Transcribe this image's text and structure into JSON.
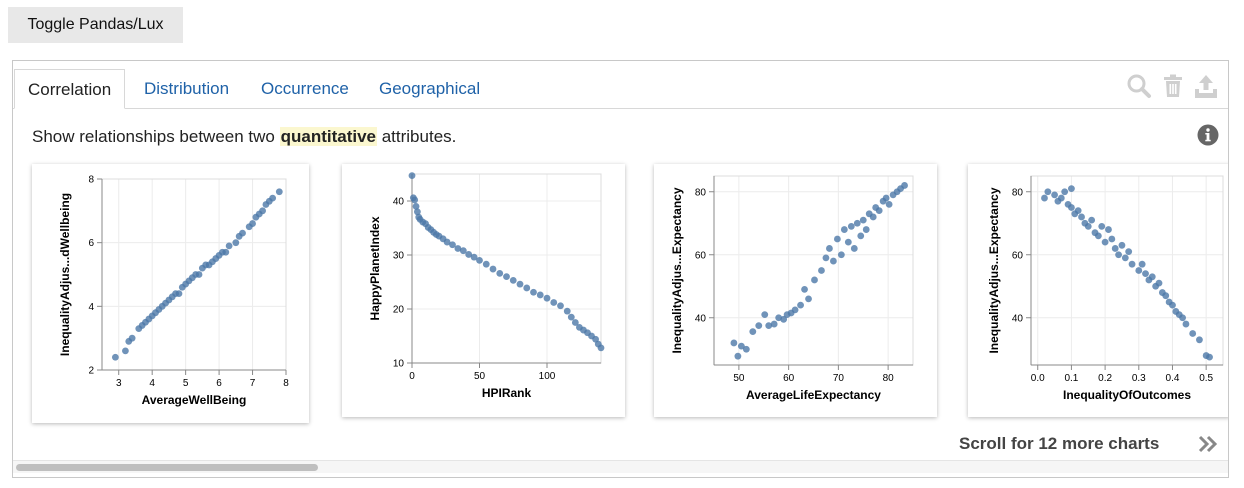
{
  "toggle": {
    "label": "Toggle Pandas/Lux"
  },
  "tabs": [
    {
      "label": "Correlation",
      "active": true
    },
    {
      "label": "Distribution"
    },
    {
      "label": "Occurrence"
    },
    {
      "label": "Geographical"
    }
  ],
  "toolbar": {
    "icons": [
      "search-icon",
      "trash-icon",
      "export-icon"
    ]
  },
  "description": {
    "prefix": "Show relationships between two ",
    "highlight": "quantitative",
    "suffix": " attributes."
  },
  "scroll_more": {
    "label": "Scroll for 12 more charts"
  },
  "colors": {
    "point": "#4c78a8",
    "tab_link": "#1f62a8",
    "highlight_bg": "#fbf7cf"
  },
  "chart_data": [
    {
      "type": "scatter",
      "xlabel": "AverageWellBeing",
      "ylabel": "InequalityAdjus...dWellbeing",
      "xlim": [
        2.5,
        8
      ],
      "ylim": [
        2,
        8
      ],
      "xticks": [
        "3",
        "4",
        "5",
        "6",
        "7",
        "8"
      ],
      "yticks": [
        "2",
        "4",
        "6",
        "8"
      ],
      "x": [
        2.9,
        3.2,
        3.3,
        3.4,
        3.6,
        3.7,
        3.8,
        3.9,
        4.0,
        4.1,
        4.2,
        4.3,
        4.4,
        4.5,
        4.6,
        4.7,
        4.8,
        4.9,
        5.0,
        5.1,
        5.2,
        5.3,
        5.4,
        5.5,
        5.6,
        5.7,
        5.8,
        5.9,
        6.0,
        6.1,
        6.2,
        6.3,
        6.5,
        6.6,
        6.7,
        6.9,
        7.0,
        7.1,
        7.2,
        7.3,
        7.4,
        7.5,
        7.6,
        7.8
      ],
      "y": [
        2.4,
        2.6,
        2.9,
        3.0,
        3.3,
        3.4,
        3.5,
        3.6,
        3.7,
        3.8,
        3.9,
        4.0,
        4.1,
        4.2,
        4.3,
        4.4,
        4.4,
        4.6,
        4.7,
        4.8,
        4.9,
        5.0,
        5.0,
        5.2,
        5.3,
        5.3,
        5.4,
        5.5,
        5.6,
        5.7,
        5.7,
        5.9,
        6.0,
        6.2,
        6.3,
        6.5,
        6.6,
        6.8,
        6.9,
        7.0,
        7.2,
        7.3,
        7.4,
        7.6
      ]
    },
    {
      "type": "scatter",
      "xlabel": "HPIRank",
      "ylabel": "HappyPlanetIndex",
      "xlim": [
        0,
        140
      ],
      "ylim": [
        10,
        45
      ],
      "xticks": [
        "0",
        "50",
        "100"
      ],
      "yticks": [
        "10",
        "20",
        "30",
        "40"
      ],
      "x": [
        0,
        1,
        2,
        3,
        4,
        5,
        6,
        8,
        10,
        12,
        14,
        16,
        18,
        20,
        23,
        26,
        30,
        34,
        38,
        42,
        46,
        50,
        55,
        60,
        65,
        70,
        75,
        80,
        85,
        90,
        95,
        100,
        105,
        110,
        115,
        118,
        121,
        124,
        127,
        130,
        133,
        136,
        138,
        140
      ],
      "y": [
        44.7,
        40.6,
        40.2,
        39.0,
        38.0,
        37.0,
        36.6,
        36.1,
        35.8,
        35.1,
        34.7,
        34.2,
        33.8,
        33.5,
        33.0,
        32.4,
        31.9,
        31.2,
        30.8,
        30.1,
        29.6,
        29.0,
        28.3,
        27.4,
        26.6,
        26.0,
        25.3,
        24.6,
        23.9,
        23.1,
        22.6,
        22.0,
        21.2,
        20.6,
        19.6,
        18.5,
        17.5,
        16.6,
        16.1,
        15.6,
        15.0,
        14.4,
        13.5,
        12.8
      ]
    },
    {
      "type": "scatter",
      "xlabel": "AverageLifeExpectancy",
      "ylabel": "InequalityAdjus...Expectancy",
      "xlim": [
        45,
        85
      ],
      "ylim": [
        25,
        85
      ],
      "xticks": [
        "50",
        "60",
        "70",
        "80"
      ],
      "yticks": [
        "40",
        "60",
        "80"
      ],
      "x": [
        49.0,
        49.8,
        50.5,
        51.5,
        52.8,
        54.0,
        55.2,
        56.0,
        57.1,
        58.0,
        59.0,
        59.7,
        60.5,
        61.3,
        62.4,
        63.2,
        64.0,
        65.2,
        66.6,
        67.5,
        68.2,
        69.0,
        69.8,
        70.6,
        71.2,
        72.0,
        72.6,
        73.2,
        73.8,
        74.5,
        75.0,
        75.6,
        76.2,
        77.0,
        77.5,
        78.2,
        79.0,
        79.6,
        80.2,
        81.0,
        81.8,
        82.5,
        83.3
      ],
      "y": [
        32.0,
        27.8,
        31.0,
        30.0,
        35.6,
        37.5,
        41.0,
        37.5,
        38.0,
        40.0,
        39.5,
        41.0,
        41.5,
        42.5,
        44.0,
        49.0,
        46.0,
        52.0,
        55.0,
        59.0,
        62.0,
        58.0,
        65.0,
        60.0,
        68.0,
        64.0,
        69.0,
        62.0,
        70.0,
        66.0,
        71.0,
        68.0,
        73.0,
        72.0,
        75.0,
        74.0,
        77.0,
        78.0,
        76.0,
        79.0,
        80.0,
        81.0,
        82.0
      ]
    },
    {
      "type": "scatter",
      "xlabel": "InequalityOfOutcomes",
      "ylabel": "InequalityAdjus...Expectancy",
      "xlim": [
        -0.02,
        0.55
      ],
      "ylim": [
        25,
        85
      ],
      "xticks": [
        "0.0",
        "0.1",
        "0.2",
        "0.3",
        "0.4",
        "0.5"
      ],
      "yticks": [
        "40",
        "60",
        "80"
      ],
      "x": [
        0.02,
        0.03,
        0.05,
        0.06,
        0.07,
        0.08,
        0.09,
        0.1,
        0.1,
        0.11,
        0.12,
        0.13,
        0.14,
        0.15,
        0.16,
        0.17,
        0.18,
        0.19,
        0.2,
        0.21,
        0.22,
        0.23,
        0.24,
        0.25,
        0.26,
        0.27,
        0.28,
        0.3,
        0.31,
        0.32,
        0.33,
        0.34,
        0.35,
        0.36,
        0.37,
        0.38,
        0.39,
        0.4,
        0.41,
        0.42,
        0.43,
        0.44,
        0.46,
        0.48,
        0.5,
        0.51
      ],
      "y": [
        78.0,
        80.0,
        79.0,
        77.0,
        78.0,
        80.0,
        76.0,
        81.0,
        75.0,
        73.0,
        74.0,
        72.0,
        70.0,
        69.0,
        71.0,
        67.0,
        66.0,
        69.0,
        64.0,
        68.0,
        65.0,
        62.0,
        60.0,
        63.0,
        59.0,
        61.0,
        57.0,
        55.0,
        57.0,
        54.0,
        52.0,
        53.0,
        50.0,
        51.0,
        48.0,
        47.0,
        45.0,
        44.0,
        42.0,
        41.0,
        40.0,
        38.0,
        35.0,
        33.0,
        28.0,
        27.5
      ]
    }
  ]
}
